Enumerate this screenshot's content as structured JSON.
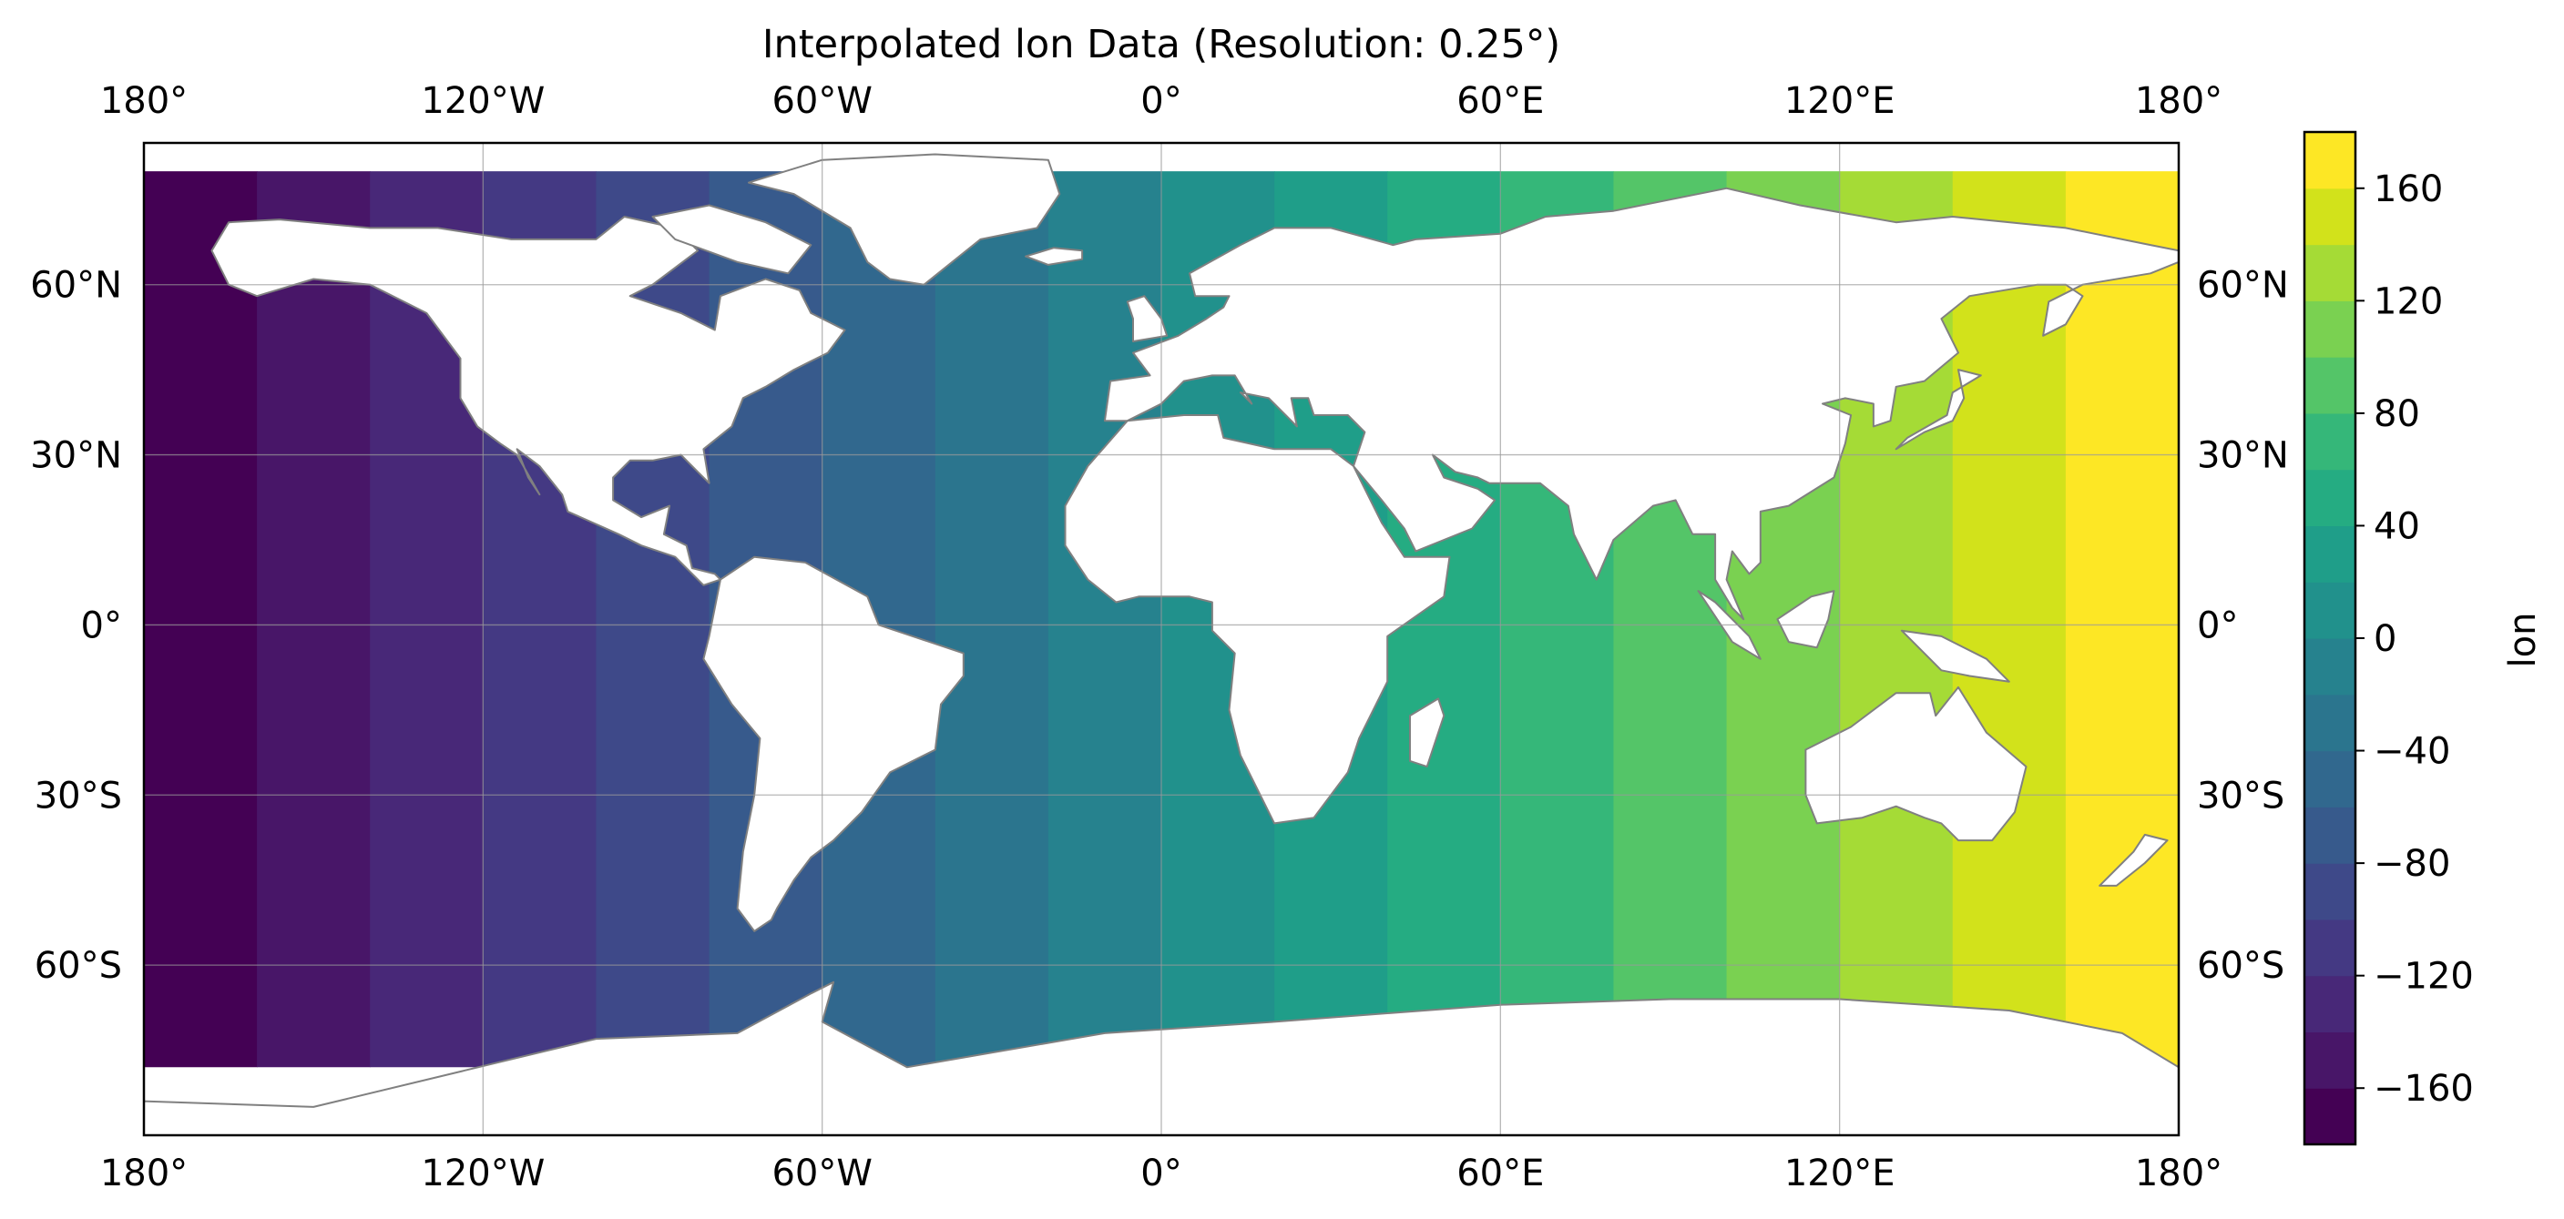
{
  "title": "Interpolated lon Data (Resolution: 0.25°)",
  "x_ticks": [
    {
      "value": -180,
      "label": "180°"
    },
    {
      "value": -120,
      "label": "120°W"
    },
    {
      "value": -60,
      "label": "60°W"
    },
    {
      "value": 0,
      "label": "0°"
    },
    {
      "value": 60,
      "label": "60°E"
    },
    {
      "value": 120,
      "label": "120°E"
    },
    {
      "value": 180,
      "label": "180°"
    }
  ],
  "y_ticks": [
    {
      "value": 60,
      "label": "60°N"
    },
    {
      "value": 30,
      "label": "30°N"
    },
    {
      "value": 0,
      "label": "0°"
    },
    {
      "value": -30,
      "label": "30°S"
    },
    {
      "value": -60,
      "label": "60°S"
    }
  ],
  "colorbar": {
    "label": "lon",
    "min": -180,
    "max": 180,
    "step": 20,
    "tick_values": [
      -160,
      -120,
      -80,
      -40,
      0,
      40,
      80,
      120,
      160
    ],
    "tick_labels": [
      "−160",
      "−120",
      "−80",
      "−40",
      "0",
      "40",
      "80",
      "120",
      "160"
    ]
  },
  "chart_data": {
    "type": "heatmap",
    "title": "Interpolated lon Data (Resolution: 0.25°)",
    "variable": "lon",
    "description_kind": "filled contour of longitude over world map with coastlines",
    "x_range": [
      -180,
      180
    ],
    "y_range": [
      -90,
      85
    ],
    "data_lat_range": [
      -78,
      80
    ],
    "levels": [
      -180,
      -160,
      -140,
      -120,
      -100,
      -80,
      -60,
      -40,
      -20,
      0,
      20,
      40,
      60,
      80,
      100,
      120,
      140,
      160,
      180
    ],
    "band_colors": [
      "#440154",
      "#482173",
      "#433e85",
      "#38588c",
      "#2d708e",
      "#25858e",
      "#1e9b8a",
      "#2ab07f",
      "#52c569",
      "#86d549",
      "#c2df23",
      "#e6e419",
      "#3e4a89",
      "#31688e",
      "#26828e",
      "#1f9e89",
      "#35b779",
      "#6ece58"
    ],
    "colormap": "viridis",
    "land_fill": "#ffffff",
    "coastline_color": "#808080",
    "grid": true
  }
}
